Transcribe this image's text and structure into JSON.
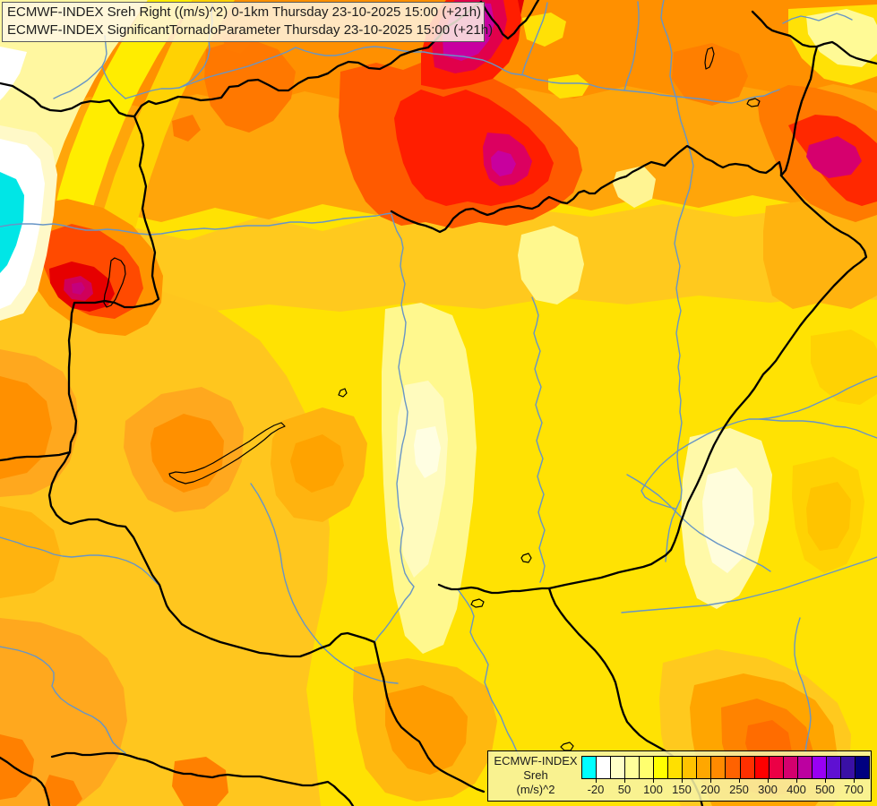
{
  "title_box": {
    "line1": "ECMWF-INDEX Sreh Right ((m/s)^2) 0-1km Thursday 23-10-2025 15:00 (+21h)",
    "line2": "ECMWF-INDEX SignificantTornadoParameter Thursday 23-10-2025 15:00 (+21h)"
  },
  "legend": {
    "product": "ECMWF-INDEX",
    "parameter": "Sreh",
    "units": "(m/s)^2",
    "tick_labels": [
      "-20",
      "50",
      "100",
      "150",
      "200",
      "250",
      "300",
      "400",
      "500",
      "700"
    ],
    "colorbar_colors": [
      "#00FFFF",
      "#FFFFFF",
      "#FFFFC8",
      "#FFFF9B",
      "#FFFF6E",
      "#FFFF00",
      "#FFE000",
      "#FFC300",
      "#FFA700",
      "#FF8A00",
      "#FF6200",
      "#FF3000",
      "#FF0000",
      "#EB0045",
      "#D4006E",
      "#BC00A0",
      "#9900F5",
      "#5F10D2",
      "#3A10A5",
      "#000080"
    ]
  },
  "map_colors": {
    "country_border": "#000000",
    "river": "#6795C6",
    "lake_outline": "#000000",
    "base_field": "#FFE203",
    "hotspot_core": "#C800A0",
    "cold_patch": "#00E6E6"
  }
}
